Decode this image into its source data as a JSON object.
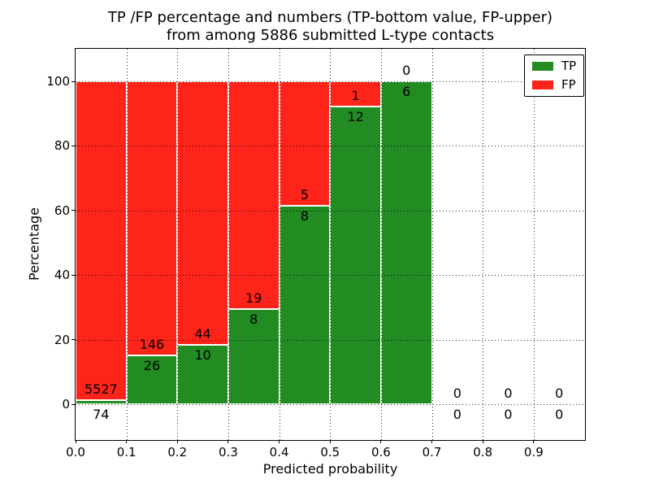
{
  "figure": {
    "title_line1": "TP /FP percentage and numbers (TP-bottom value, FP-upper)",
    "title_line2": "from among 5886 submitted L-type contacts"
  },
  "chart_data": {
    "type": "bar",
    "stacked": true,
    "title": "TP /FP percentage and numbers (TP-bottom value, FP-upper) from among 5886 submitted L-type contacts",
    "xlabel": "Predicted probability",
    "ylabel": "Percentage",
    "total_contacts": 5886,
    "xlim": [
      0.0,
      1.0
    ],
    "ylim_pct": [
      -11,
      110
    ],
    "xticks": [
      "0.0",
      "0.1",
      "0.2",
      "0.3",
      "0.4",
      "0.5",
      "0.6",
      "0.7",
      "0.8",
      "0.9"
    ],
    "yticks": [
      0,
      20,
      40,
      60,
      80,
      100
    ],
    "grid": "dotted both axes",
    "annotation_format": "FP count printed above the TP/FP boundary, TP count printed below it",
    "legend": {
      "position": "upper right",
      "entries": [
        {
          "label": "TP",
          "color": "#228b22"
        },
        {
          "label": "FP",
          "color": "#fe2419"
        }
      ]
    },
    "bins": [
      {
        "x_range": [
          0.0,
          0.1
        ],
        "tp": 74,
        "fp": 5527,
        "tp_pct": 1.32,
        "fp_pct": 98.68
      },
      {
        "x_range": [
          0.1,
          0.2
        ],
        "tp": 26,
        "fp": 146,
        "tp_pct": 15.12,
        "fp_pct": 84.88
      },
      {
        "x_range": [
          0.2,
          0.3
        ],
        "tp": 10,
        "fp": 44,
        "tp_pct": 18.52,
        "fp_pct": 81.48
      },
      {
        "x_range": [
          0.3,
          0.4
        ],
        "tp": 8,
        "fp": 19,
        "tp_pct": 29.63,
        "fp_pct": 70.37
      },
      {
        "x_range": [
          0.4,
          0.5
        ],
        "tp": 8,
        "fp": 5,
        "tp_pct": 61.54,
        "fp_pct": 38.46
      },
      {
        "x_range": [
          0.5,
          0.6
        ],
        "tp": 12,
        "fp": 1,
        "tp_pct": 92.31,
        "fp_pct": 7.69
      },
      {
        "x_range": [
          0.6,
          0.7
        ],
        "tp": 6,
        "fp": 0,
        "tp_pct": 100.0,
        "fp_pct": 0.0
      },
      {
        "x_range": [
          0.7,
          0.8
        ],
        "tp": 0,
        "fp": 0,
        "tp_pct": null,
        "fp_pct": null
      },
      {
        "x_range": [
          0.8,
          0.9
        ],
        "tp": 0,
        "fp": 0,
        "tp_pct": null,
        "fp_pct": null
      },
      {
        "x_range": [
          0.9,
          1.0
        ],
        "tp": 0,
        "fp": 0,
        "tp_pct": null,
        "fp_pct": null
      }
    ]
  },
  "colors": {
    "tp_green": "#228b22",
    "fp_red": "#fe2419",
    "background": "#ffffff",
    "frame": "#000000",
    "grid": "#000000",
    "text": "#000000",
    "bar_edge": "#ffffff"
  }
}
